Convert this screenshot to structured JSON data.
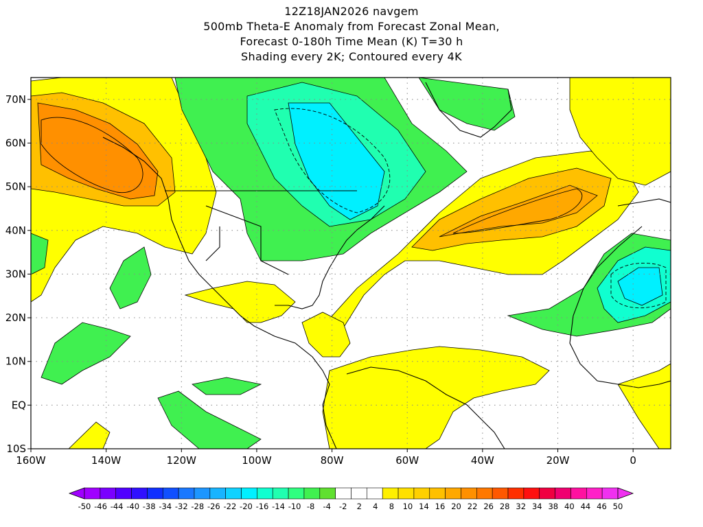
{
  "header": {
    "line1": "12Z18JAN2026 navgem",
    "line2": "500mb Theta-E Anomaly from Forecast Zonal Mean,",
    "line3": "Forecast 0-180h Time Mean (K) T=30 h",
    "line4": "Shading every 2K; Contoured every 4K"
  },
  "map": {
    "projection": "lat-lon",
    "lon_range": [
      -160,
      10
    ],
    "lat_range": [
      -10,
      75
    ],
    "gridlines": "dotted",
    "lat_labels": [
      "70N",
      "60N",
      "50N",
      "40N",
      "30N",
      "20N",
      "10N",
      "EQ",
      "10S"
    ],
    "lat_values": [
      70,
      60,
      50,
      40,
      30,
      20,
      10,
      0,
      -10
    ],
    "lon_labels": [
      "160W",
      "140W",
      "120W",
      "100W",
      "80W",
      "60W",
      "40W",
      "20W",
      "0"
    ],
    "lon_values": [
      -160,
      -140,
      -120,
      -100,
      -80,
      -60,
      -40,
      -20,
      0
    ],
    "shading_interval_K": 2,
    "contour_interval_K": 4
  },
  "colorbar": {
    "labels": [
      "-50",
      "-46",
      "-44",
      "-40",
      "-38",
      "-34",
      "-32",
      "-28",
      "-26",
      "-22",
      "-20",
      "-16",
      "-14",
      "-10",
      "-8",
      "-4",
      "-2",
      "2",
      "4",
      "8",
      "10",
      "14",
      "16",
      "20",
      "22",
      "26",
      "28",
      "32",
      "34",
      "38",
      "40",
      "44",
      "46",
      "50"
    ],
    "colors": [
      "#a000ff",
      "#7a00ff",
      "#5000ff",
      "#3010ff",
      "#1030ff",
      "#1050ff",
      "#1a78ff",
      "#1d96ff",
      "#18b4ff",
      "#10d2ff",
      "#00f0ff",
      "#10ffd0",
      "#20ffb0",
      "#30ff80",
      "#40f050",
      "#60e030",
      "#ffffff",
      "#ffffff",
      "#ffffff",
      "#fff000",
      "#ffe000",
      "#ffd000",
      "#ffc000",
      "#ffa800",
      "#ff9000",
      "#ff7800",
      "#ff5800",
      "#ff3000",
      "#ff1010",
      "#f00040",
      "#f00070",
      "#ff10a0",
      "#ff20c8",
      "#f030f0"
    ]
  },
  "colors": {
    "positive_anomaly": "#ffff00",
    "warm_anomaly": "#ffa000",
    "negative_anomaly": "#00ff00",
    "strong_negative": "#00ffff"
  }
}
